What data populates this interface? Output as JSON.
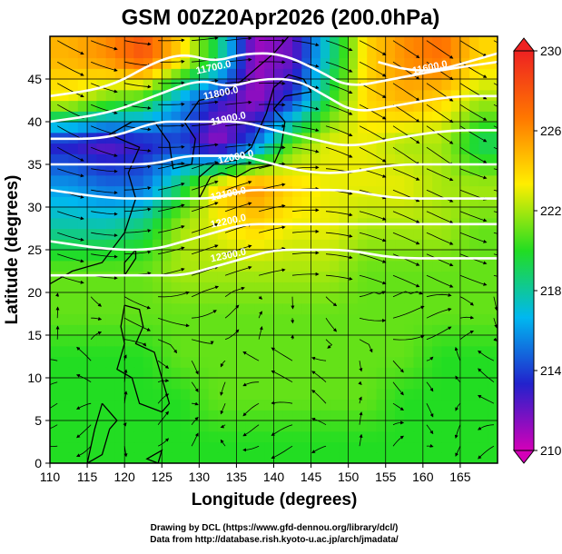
{
  "title": "GSM 00Z20Apr2026 (200.0hPa)",
  "credits": [
    "Drawing by DCL (https://www.gfd-dennou.org/library/dcl/)",
    "Data from http://database.rish.kyoto-u.ac.jp/arch/jmadata/"
  ],
  "chart_data": {
    "type": "heatmap",
    "title": "GSM 00Z20Apr2026 (200.0hPa)",
    "xlabel": "Longitude (degrees)",
    "ylabel": "Latitude  (degrees)",
    "xlim": [
      110,
      170
    ],
    "ylim": [
      0,
      50
    ],
    "xticks": [
      110,
      115,
      120,
      125,
      130,
      135,
      140,
      145,
      150,
      155,
      160,
      165
    ],
    "yticks": [
      0,
      5,
      10,
      15,
      20,
      25,
      30,
      35,
      40,
      45
    ],
    "grid": true,
    "colorbar": {
      "min": 210,
      "max": 230,
      "ticks": [
        210,
        214,
        218,
        222,
        226,
        230
      ],
      "stops": [
        "#d400b8",
        "#2222cc",
        "#00b8f0",
        "#22dd22",
        "#ffee00",
        "#ff7700",
        "#ee2222"
      ]
    },
    "field": {
      "description": "temperature (K)",
      "rows_lat": [
        47.5,
        42.5,
        37.5,
        32.5,
        27.5,
        22.5,
        17.5,
        12.5,
        7.5,
        2.5
      ],
      "cols_lon": [
        112.5,
        117.5,
        122.5,
        127.5,
        132.5,
        137.5,
        142.5,
        147.5,
        152.5,
        157.5,
        162.5,
        167.5
      ],
      "values": [
        [
          225,
          226,
          228,
          224,
          219,
          211,
          212,
          218,
          224,
          226,
          227,
          224
        ],
        [
          223,
          221,
          220,
          216,
          213,
          211,
          214,
          220,
          224,
          225,
          224,
          222
        ],
        [
          213,
          212,
          213,
          214,
          211,
          215,
          221,
          223,
          223,
          222,
          222,
          219
        ],
        [
          216,
          215,
          215,
          219,
          224,
          226,
          224,
          223,
          223,
          223,
          222,
          222
        ],
        [
          218,
          218,
          219,
          222,
          223,
          224,
          223,
          223,
          222,
          222,
          222,
          221
        ],
        [
          221,
          221,
          221,
          222,
          222,
          222,
          222,
          222,
          221,
          221,
          221,
          221
        ],
        [
          221,
          221,
          221,
          221,
          221,
          221,
          221,
          221,
          221,
          221,
          221,
          221
        ],
        [
          220,
          220,
          220,
          221,
          221,
          221,
          221,
          221,
          221,
          221,
          220,
          220
        ],
        [
          220,
          220,
          220,
          220,
          221,
          221,
          221,
          221,
          221,
          220,
          220,
          220
        ],
        [
          220,
          220,
          220,
          220,
          220,
          220,
          220,
          220,
          220,
          220,
          220,
          220
        ]
      ]
    },
    "contours": [
      {
        "label": "11700.0",
        "lon": [
          110,
          118,
          124,
          128,
          132,
          136,
          141,
          146,
          150,
          156,
          162,
          170
        ],
        "lat": [
          43,
          44,
          47,
          48,
          47,
          48,
          48,
          46,
          44,
          45,
          46,
          47
        ],
        "label_at": [
          132,
          46
        ]
      },
      {
        "label": "11800.0",
        "lon": [
          110,
          118,
          124,
          130,
          134,
          138,
          143,
          147,
          151,
          157,
          164,
          170
        ],
        "lat": [
          40,
          41,
          43,
          45,
          44,
          45,
          45,
          43,
          41,
          42,
          43,
          43
        ],
        "label_at": [
          133,
          43
        ]
      },
      {
        "label": "11900.0",
        "lon": [
          110,
          118,
          124,
          128,
          132,
          136,
          140,
          145,
          150,
          156,
          163,
          170
        ],
        "lat": [
          38,
          38,
          40,
          40,
          40,
          40,
          39,
          38,
          37,
          38,
          39,
          39
        ],
        "label_at": [
          134,
          40
        ]
      },
      {
        "label": "12000.0",
        "lon": [
          110,
          118,
          124,
          128,
          132,
          136,
          140,
          145,
          150,
          156,
          163,
          170
        ],
        "lat": [
          35,
          35,
          35,
          36,
          36,
          36,
          35,
          34,
          34,
          35,
          35,
          35
        ],
        "label_at": [
          135,
          35.5
        ]
      },
      {
        "label": "12100.0",
        "lon": [
          110,
          118,
          124,
          128,
          132,
          136,
          140,
          145,
          150,
          156,
          163,
          170
        ],
        "lat": [
          32,
          31,
          31,
          31,
          31,
          32,
          32,
          32,
          32,
          31,
          31,
          31
        ],
        "label_at": [
          134,
          31.2
        ]
      },
      {
        "label": "12200.0",
        "lon": [
          110,
          118,
          124,
          128,
          132,
          136,
          140,
          145,
          150,
          156,
          163,
          170
        ],
        "lat": [
          26,
          25,
          25,
          26,
          27,
          28,
          28,
          28,
          28,
          28,
          28,
          28
        ],
        "label_at": [
          134,
          28
        ]
      },
      {
        "label": "12300.0",
        "lon": [
          110,
          118,
          124,
          128,
          132,
          136,
          140,
          145,
          150,
          156,
          163,
          170
        ],
        "lat": [
          22,
          22,
          22,
          22,
          23,
          24,
          25,
          25,
          25,
          24,
          24,
          24
        ],
        "label_at": [
          134,
          24
        ]
      },
      {
        "label": "11600.0",
        "lon": [
          154,
          158,
          162,
          166,
          170
        ],
        "lat": [
          47,
          46,
          46,
          47,
          48
        ],
        "label_at": [
          161,
          46
        ]
      }
    ]
  }
}
